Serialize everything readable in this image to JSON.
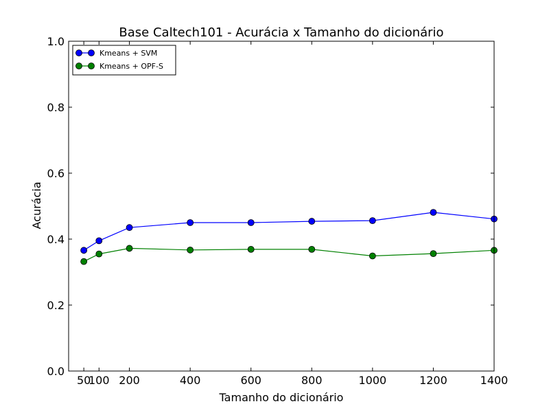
{
  "chart_data": {
    "type": "line",
    "title": "Base Caltech101 - Acurácia x Tamanho do dicionário",
    "xlabel": "Tamanho do dicionário",
    "ylabel": "Acurácia",
    "xlim": [
      0,
      1400
    ],
    "ylim": [
      0.0,
      1.0
    ],
    "xticks": [
      50,
      100,
      200,
      400,
      600,
      800,
      1000,
      1200,
      1400
    ],
    "xtick_labels": [
      "50",
      "100",
      "200",
      "400",
      "600",
      "800",
      "1000",
      "1200",
      "1400"
    ],
    "yticks": [
      0.0,
      0.2,
      0.4,
      0.6,
      0.8,
      1.0
    ],
    "ytick_labels": [
      "0.0",
      "0.2",
      "0.4",
      "0.6",
      "0.8",
      "1.0"
    ],
    "grid": false,
    "legend_position": "top-left",
    "x": [
      50,
      100,
      200,
      400,
      600,
      800,
      1000,
      1200,
      1400
    ],
    "series": [
      {
        "name": "Kmeans + SVM",
        "color": "#0000ff",
        "values": [
          0.366,
          0.395,
          0.435,
          0.45,
          0.45,
          0.454,
          0.456,
          0.481,
          0.461
        ]
      },
      {
        "name": "Kmeans + OPF-S",
        "color": "#008000",
        "values": [
          0.332,
          0.355,
          0.372,
          0.367,
          0.369,
          0.369,
          0.349,
          0.356,
          0.366
        ]
      }
    ]
  }
}
